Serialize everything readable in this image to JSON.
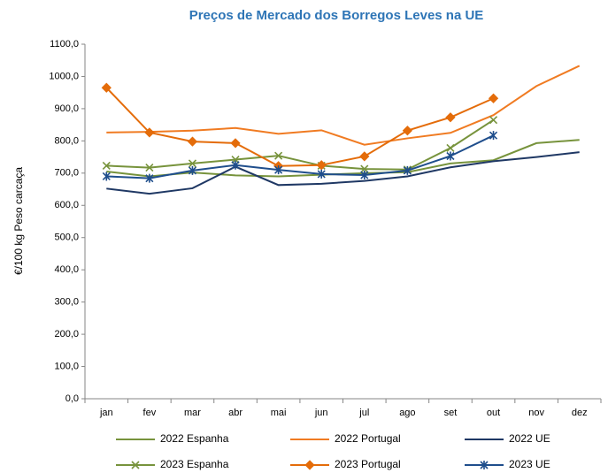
{
  "chart_data": {
    "type": "line",
    "title": "Preços de Mercado dos Borregos Leves na UE",
    "y_label": "€/100 kg Peso carcaça",
    "categories": [
      "jan",
      "fev",
      "mar",
      "abr",
      "mai",
      "jun",
      "jul",
      "ago",
      "set",
      "out",
      "nov",
      "dez"
    ],
    "ylim": [
      0,
      1100
    ],
    "yticks": [
      {
        "value": 0,
        "label": "0,0"
      },
      {
        "value": 100,
        "label": "100,0"
      },
      {
        "value": 200,
        "label": "200,0"
      },
      {
        "value": 300,
        "label": "300,0"
      },
      {
        "value": 400,
        "label": "400,0"
      },
      {
        "value": 500,
        "label": "500,0"
      },
      {
        "value": 600,
        "label": "600,0"
      },
      {
        "value": 700,
        "label": "700,0"
      },
      {
        "value": 800,
        "label": "800,0"
      },
      {
        "value": 900,
        "label": "900,0"
      },
      {
        "value": 1000,
        "label": "1000,0"
      },
      {
        "value": 1100,
        "label": "1100,0"
      }
    ],
    "legend": "bottom",
    "series": [
      {
        "name": "2022 Espanha",
        "color": "#77933c",
        "marker": "none",
        "values": [
          705,
          690,
          702,
          693,
          690,
          695,
          700,
          703,
          730,
          740,
          793,
          803
        ]
      },
      {
        "name": "2022 Portugal",
        "color": "#f07b22",
        "marker": "none",
        "values": [
          826,
          828,
          832,
          840,
          822,
          833,
          788,
          808,
          825,
          880,
          970,
          1033
        ]
      },
      {
        "name": "2022 UE",
        "color": "#1f3864",
        "marker": "none",
        "values": [
          652,
          636,
          653,
          720,
          663,
          667,
          676,
          690,
          718,
          737,
          750,
          765
        ]
      },
      {
        "name": "2023 Espanha",
        "color": "#77933c",
        "marker": "x",
        "values": [
          723,
          717,
          730,
          742,
          754,
          723,
          713,
          711,
          778,
          865,
          null,
          null
        ]
      },
      {
        "name": "2023 Portugal",
        "color": "#e46c0a",
        "marker": "diamond",
        "values": [
          965,
          826,
          798,
          793,
          722,
          725,
          752,
          832,
          873,
          932,
          null,
          null
        ]
      },
      {
        "name": "2023 UE",
        "color": "#1f4e8c",
        "marker": "asterisk",
        "values": [
          690,
          684,
          708,
          725,
          710,
          697,
          694,
          708,
          753,
          817,
          null,
          null
        ]
      }
    ]
  }
}
